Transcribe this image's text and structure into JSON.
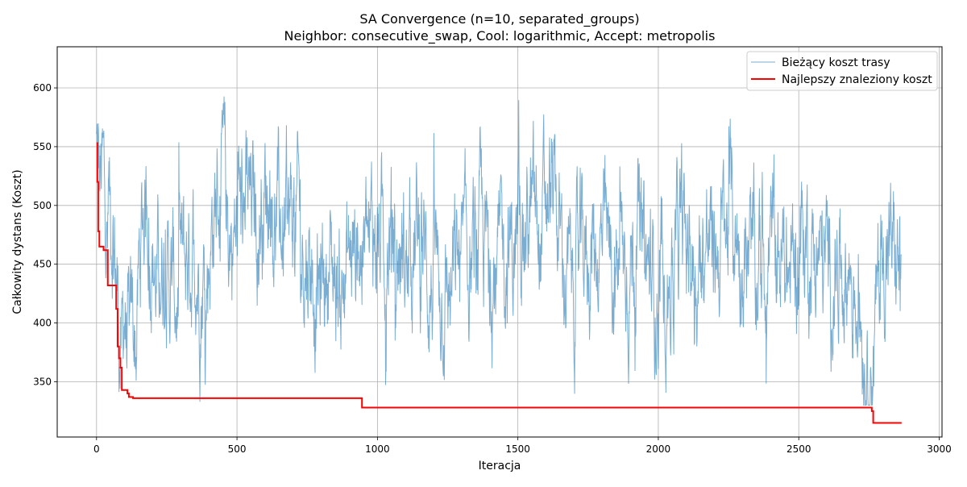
{
  "chart_data": {
    "type": "line",
    "title": "SA Convergence (n=10, separated_groups)",
    "subtitle": "Neighbor: consecutive_swap, Cool: logarithmic, Accept: metropolis",
    "xlabel": "Iteracja",
    "ylabel": "Całkowity dystans (Koszt)",
    "xlim": [
      -140,
      3010
    ],
    "ylim": [
      303,
      635
    ],
    "xticks": [
      0,
      500,
      1000,
      1500,
      2000,
      2500,
      3000
    ],
    "yticks": [
      350,
      400,
      450,
      500,
      550,
      600
    ],
    "grid": true,
    "legend": "top-right",
    "series": [
      {
        "name": "Bieżący koszt trasy",
        "color": "#1f77b4",
        "opacity": 0.6,
        "linewidth": 1,
        "style": "noisy",
        "iterations": 2866,
        "x": [
          0,
          10,
          20,
          30,
          40,
          50,
          60,
          70,
          80,
          90,
          100,
          110,
          120,
          130,
          140,
          150,
          160,
          170,
          180,
          190,
          200,
          210,
          220,
          230,
          240,
          250,
          270,
          290,
          310,
          330,
          350,
          370,
          390,
          410,
          430,
          450,
          470,
          490,
          510,
          530,
          560,
          590,
          620,
          650,
          680,
          710,
          740,
          770,
          790,
          810,
          830,
          850,
          870,
          900,
          930,
          960,
          990,
          1020,
          1050,
          1080,
          1110,
          1140,
          1170,
          1200,
          1230,
          1260,
          1290,
          1310,
          1340,
          1370,
          1400,
          1430,
          1460,
          1490,
          1520,
          1550,
          1580,
          1600,
          1620,
          1650,
          1670,
          1690,
          1720,
          1750,
          1780,
          1810,
          1840,
          1870,
          1900,
          1930,
          1960,
          1990,
          2020,
          2050,
          2080,
          2110,
          2140,
          2170,
          2200,
          2230,
          2260,
          2290,
          2320,
          2350,
          2380,
          2410,
          2440,
          2470,
          2500,
          2530,
          2560,
          2590,
          2620,
          2650,
          2680,
          2710,
          2730,
          2750,
          2760,
          2770,
          2790,
          2810,
          2830,
          2850,
          2866
        ],
        "y": [
          550,
          510,
          520,
          500,
          470,
          480,
          500,
          450,
          400,
          360,
          420,
          380,
          360,
          400,
          380,
          430,
          470,
          500,
          520,
          500,
          470,
          440,
          430,
          450,
          470,
          440,
          430,
          420,
          440,
          460,
          470,
          440,
          450,
          480,
          510,
          520,
          480,
          470,
          480,
          500,
          490,
          510,
          520,
          480,
          470,
          500,
          470,
          450,
          420,
          440,
          460,
          440,
          430,
          450,
          470,
          460,
          480,
          470,
          480,
          460,
          450,
          470,
          450,
          430,
          440,
          420,
          450,
          440,
          460,
          470,
          450,
          440,
          470,
          460,
          480,
          490,
          470,
          500,
          510,
          470,
          440,
          430,
          450,
          460,
          470,
          460,
          450,
          440,
          460,
          470,
          440,
          430,
          440,
          450,
          470,
          460,
          450,
          470,
          460,
          470,
          480,
          470,
          450,
          440,
          460,
          470,
          450,
          440,
          460,
          470,
          460,
          450,
          440,
          450,
          450,
          430,
          400,
          360,
          380,
          390,
          440,
          470,
          460,
          450,
          440
        ],
        "y_min_visible": 330,
        "y_max_visible": 619
      },
      {
        "name": "Najlepszy znaleziony koszt",
        "color": "#ff0000",
        "linewidth": 2,
        "style": "step",
        "x": [
          0,
          3,
          6,
          10,
          25,
          40,
          55,
          70,
          75,
          80,
          85,
          90,
          100,
          110,
          115,
          120,
          130,
          945,
          2760,
          2765,
          2866
        ],
        "y": [
          553,
          520,
          478,
          465,
          462,
          432,
          432,
          412,
          380,
          370,
          362,
          343,
          343,
          340,
          337,
          337,
          336,
          328,
          325,
          315,
          315
        ]
      }
    ]
  }
}
